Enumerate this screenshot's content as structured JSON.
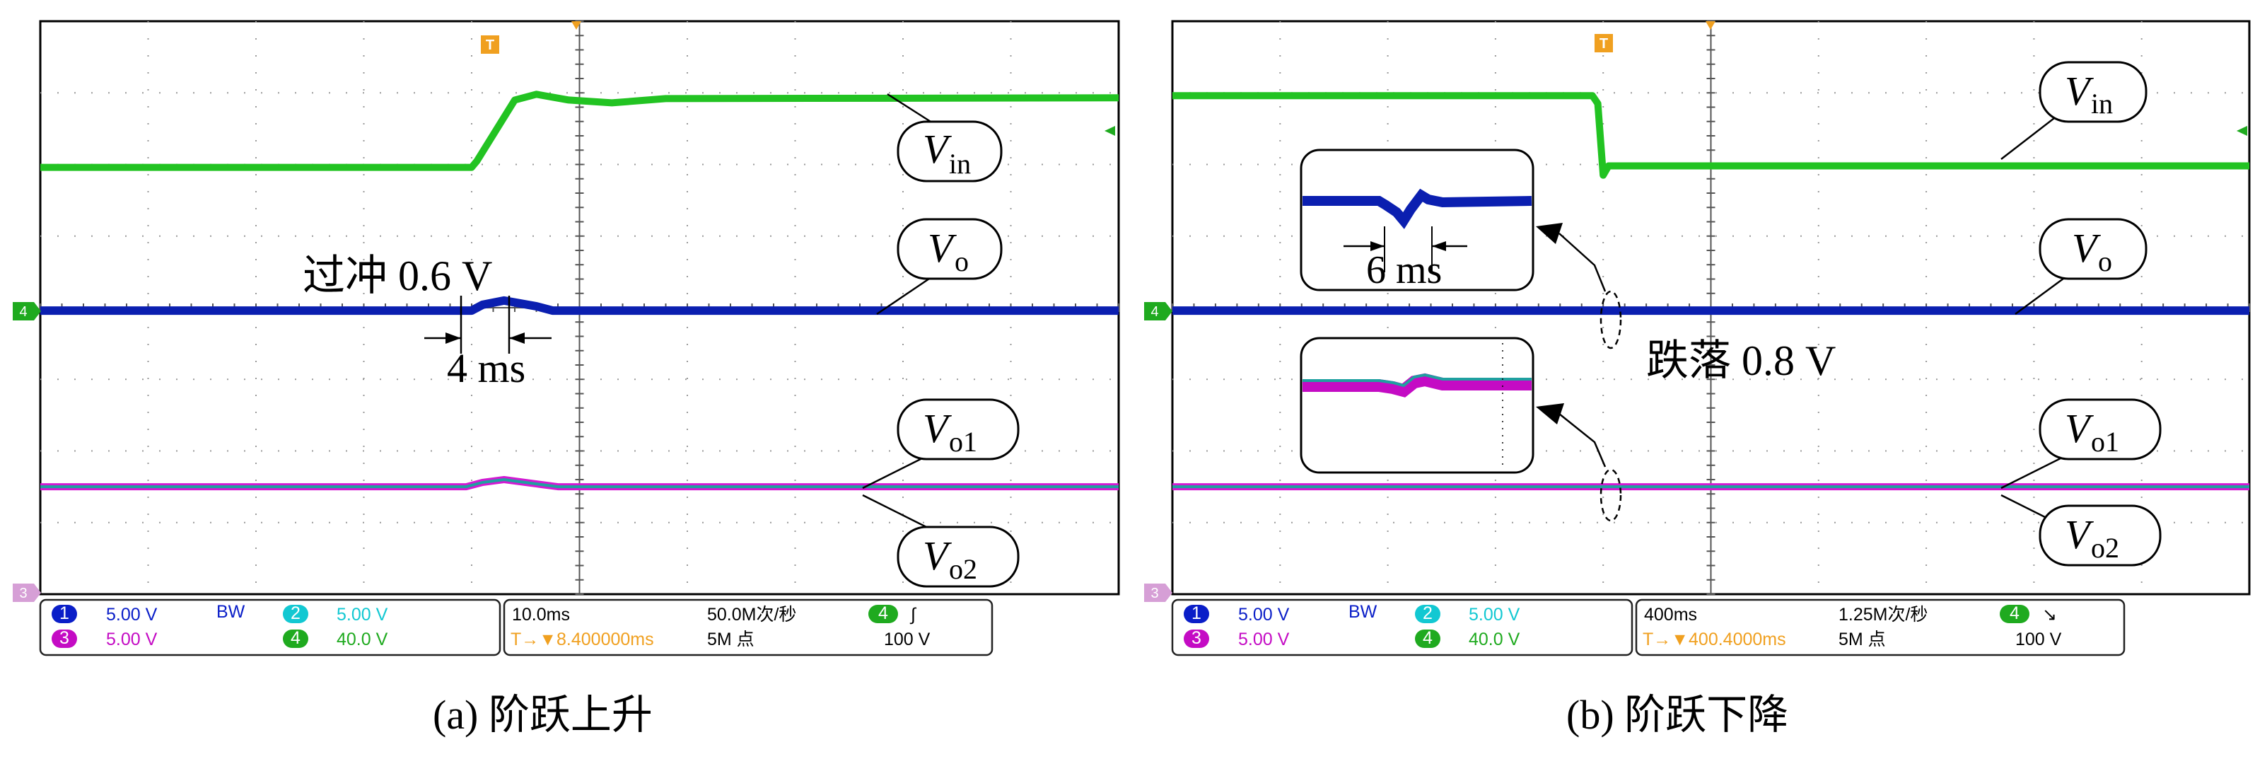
{
  "colors": {
    "ch1": "#0a1ec8",
    "ch2": "#12c8d2",
    "ch3": "#c40bc4",
    "ch4": "#1faa1f",
    "vin_trace": "#22c322",
    "vo_trace": "#0b1fb0",
    "vo1_trace": "#1fa0a0",
    "vo2_trace": "#d21ad2",
    "trigger": "#f0a020",
    "grid": "#9a9a9a"
  },
  "chart_data": [
    {
      "type": "line",
      "panel": "a",
      "caption": "(a) 阶跃上升",
      "grid": true,
      "divisions": {
        "x": 10,
        "y": 8
      },
      "series": [
        {
          "name": "Vin",
          "label_main": "V",
          "label_sub": "in",
          "points": [
            [
              0,
              5.96
            ],
            [
              4,
              5.96
            ],
            [
              4.05,
              6.05
            ],
            [
              4.4,
              6.9
            ],
            [
              4.6,
              6.98
            ],
            [
              4.9,
              6.9
            ],
            [
              5.3,
              6.86
            ],
            [
              5.8,
              6.92
            ],
            [
              10,
              6.93
            ]
          ]
        },
        {
          "name": "Vo",
          "label_main": "V",
          "label_sub": "o",
          "points": [
            [
              0,
              3.96
            ],
            [
              4.0,
              3.96
            ],
            [
              4.1,
              4.04
            ],
            [
              4.3,
              4.1
            ],
            [
              4.6,
              4.02
            ],
            [
              4.75,
              3.96
            ],
            [
              10,
              3.96
            ]
          ]
        },
        {
          "name": "Vo1",
          "label_main": "V",
          "label_sub": "o1",
          "points": [
            [
              0,
              1.5
            ],
            [
              3.95,
              1.5
            ],
            [
              4.1,
              1.56
            ],
            [
              4.3,
              1.6
            ],
            [
              4.6,
              1.54
            ],
            [
              4.8,
              1.5
            ],
            [
              10,
              1.5
            ]
          ]
        },
        {
          "name": "Vo2",
          "label_main": "V",
          "label_sub": "o2",
          "points": [
            [
              0,
              1.5
            ],
            [
              3.95,
              1.5
            ],
            [
              4.1,
              1.56
            ],
            [
              4.3,
              1.6
            ],
            [
              4.6,
              1.54
            ],
            [
              4.8,
              1.5
            ],
            [
              10,
              1.5
            ]
          ]
        }
      ],
      "annotations": {
        "overshoot": "过冲 0.6 V",
        "duration": "4 ms"
      },
      "scope_settings": {
        "ch1_num": "1",
        "ch1_scale": "5.00 V",
        "bw": "BW",
        "ch2_num": "2",
        "ch2_scale": "5.00 V",
        "ch3_num": "3",
        "ch3_scale": "5.00 V",
        "ch4_num": "4",
        "ch4_scale": "40.0 V",
        "timebase": "10.0ms",
        "sample_rate": "50.0M次/秒",
        "trigger_ch": "4",
        "trigger_edge": "∫",
        "trigger_pos": "T→▼8.400000ms",
        "record_length": "5M 点",
        "trigger_level": "100 V"
      }
    },
    {
      "type": "line",
      "panel": "b",
      "caption": "(b) 阶跃下降",
      "grid": true,
      "divisions": {
        "x": 10,
        "y": 8
      },
      "series": [
        {
          "name": "Vin",
          "label_main": "V",
          "label_sub": "in",
          "points": [
            [
              0,
              6.96
            ],
            [
              3.9,
              6.96
            ],
            [
              3.95,
              6.85
            ],
            [
              4.0,
              5.85
            ],
            [
              4.05,
              5.98
            ],
            [
              10,
              5.98
            ]
          ]
        },
        {
          "name": "Vo",
          "label_main": "V",
          "label_sub": "o",
          "points": [
            [
              0,
              3.96
            ],
            [
              10,
              3.96
            ]
          ]
        },
        {
          "name": "Vo1",
          "label_main": "V",
          "label_sub": "o1",
          "points": [
            [
              0,
              1.5
            ],
            [
              10,
              1.5
            ]
          ]
        },
        {
          "name": "Vo2",
          "label_main": "V",
          "label_sub": "o2",
          "points": [
            [
              0,
              1.5
            ],
            [
              10,
              1.5
            ]
          ]
        }
      ],
      "annotations": {
        "drop": "跌落 0.8 V",
        "duration": "6 ms"
      },
      "scope_settings": {
        "ch1_num": "1",
        "ch1_scale": "5.00 V",
        "bw": "BW",
        "ch2_num": "2",
        "ch2_scale": "5.00 V",
        "ch3_num": "3",
        "ch3_scale": "5.00 V",
        "ch4_num": "4",
        "ch4_scale": "40.0 V",
        "timebase": "400ms",
        "sample_rate": "1.25M次/秒",
        "trigger_ch": "4",
        "trigger_edge": "↘",
        "trigger_pos": "T→▼400.4000ms",
        "record_length": "5M 点",
        "trigger_level": "100 V"
      }
    }
  ],
  "markers": {
    "trigger_t": "T",
    "ch4_marker": "4",
    "ch3_marker": "3"
  }
}
